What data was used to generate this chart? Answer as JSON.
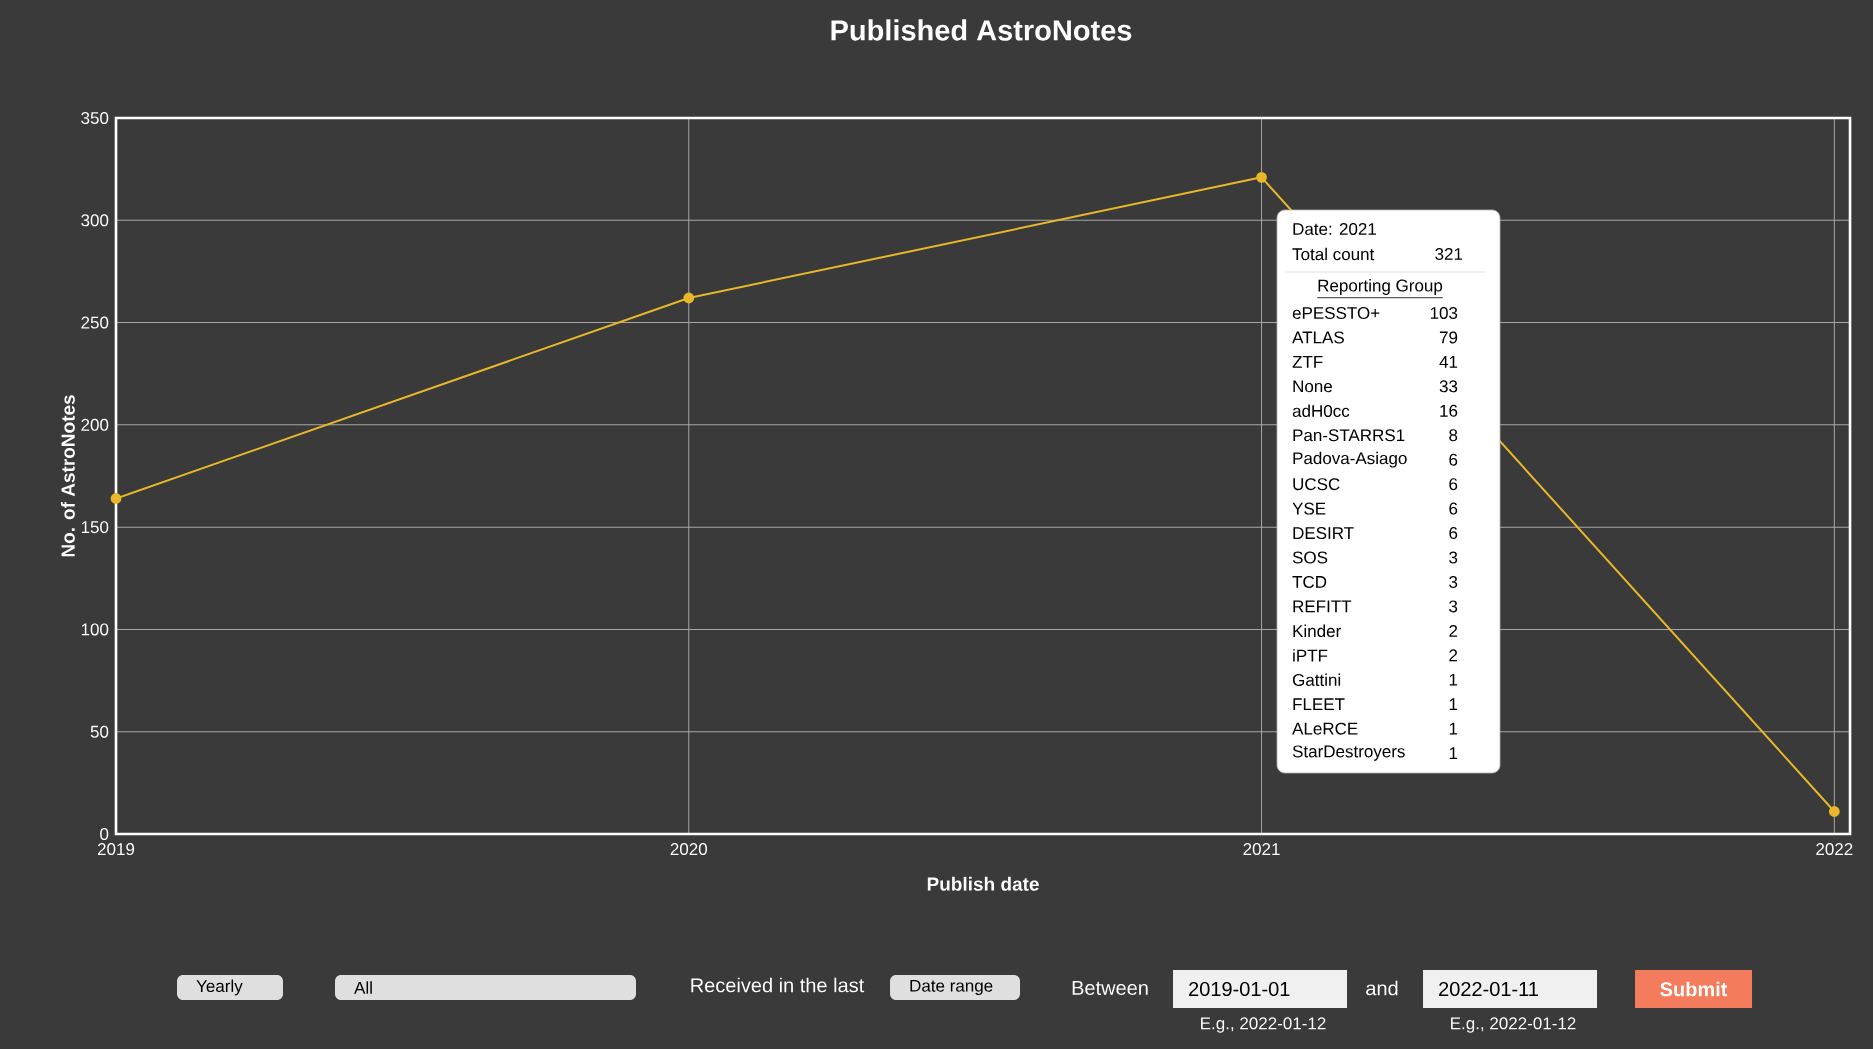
{
  "chart_data": {
    "type": "line",
    "title": "Published AstroNotes",
    "xlabel": "Publish date",
    "ylabel": "No. of AstroNotes",
    "x": [
      "2019",
      "2020",
      "2021",
      "2022"
    ],
    "series": [
      {
        "color": "#e8b82a",
        "values": [
          164,
          262,
          321,
          11
        ]
      }
    ],
    "xlim": [
      "2019-01-01",
      "2022-01-11"
    ],
    "xticks": [
      "2019",
      "2020",
      "2021",
      "2022"
    ],
    "ylim": [
      0,
      350
    ],
    "yticks": [
      0,
      50,
      100,
      150,
      200,
      250,
      300,
      350
    ],
    "grid": true,
    "marker": "circle",
    "line_style": "solid",
    "annotations": [
      "Date: 2021",
      "Total count",
      "321",
      "Reporting Group",
      "ePESSTO+",
      "103",
      "ATLAS",
      "79",
      "ZTF",
      "41",
      "None",
      "33",
      "adH0cc",
      "16",
      "Pan-STARRS1",
      "8",
      "Padova-Asiago",
      "6",
      "UCSC",
      "6",
      "YSE",
      "6",
      "DESIRT",
      "6",
      "SOS",
      "3",
      "TCD",
      "3",
      "REFITT",
      "3",
      "Kinder",
      "2",
      "iPTF",
      "2",
      "Gattini",
      "1",
      "FLEET",
      "1",
      "ALeRCE",
      "1",
      "StarDestroyers",
      "1",
      "Yearly",
      "All",
      "Received in the last",
      "Date range",
      "Between",
      "2019-01-01",
      "E.g., 2022-01-12",
      "and",
      "2022-01-11",
      "E.g., 2022-01-12",
      "Submit"
    ]
  }
}
